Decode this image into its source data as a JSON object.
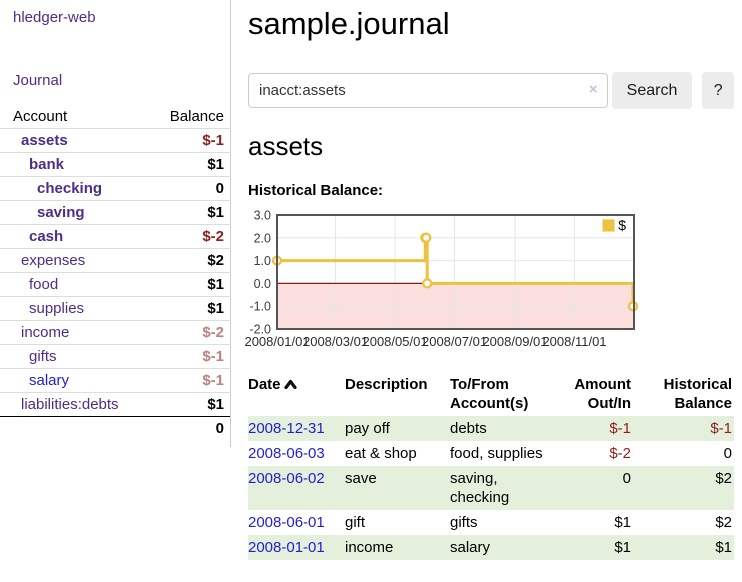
{
  "app": {
    "title": "hledger-web"
  },
  "nav": {
    "journal": "Journal"
  },
  "sidebar": {
    "account_header": "Account",
    "balance_header": "Balance",
    "accounts": [
      {
        "name": "assets",
        "depth": 1,
        "balance": "$-1",
        "matched": true,
        "balance_tone": "negative"
      },
      {
        "name": "bank",
        "depth": 2,
        "balance": "$1",
        "matched": true,
        "balance_tone": "normal"
      },
      {
        "name": "checking",
        "depth": 3,
        "balance": "0",
        "matched": true,
        "balance_tone": "normal"
      },
      {
        "name": "saving",
        "depth": 3,
        "balance": "$1",
        "matched": true,
        "balance_tone": "normal"
      },
      {
        "name": "cash",
        "depth": 2,
        "balance": "$-2",
        "matched": true,
        "balance_tone": "negative"
      },
      {
        "name": "expenses",
        "depth": 1,
        "balance": "$2",
        "matched": false,
        "balance_tone": "normal"
      },
      {
        "name": "food",
        "depth": 2,
        "balance": "$1",
        "matched": false,
        "balance_tone": "normal"
      },
      {
        "name": "supplies",
        "depth": 2,
        "balance": "$1",
        "matched": false,
        "balance_tone": "normal"
      },
      {
        "name": "income",
        "depth": 1,
        "balance": "$-2",
        "matched": false,
        "balance_tone": "negative-muted"
      },
      {
        "name": "gifts",
        "depth": 2,
        "balance": "$-1",
        "matched": false,
        "balance_tone": "negative-muted"
      },
      {
        "name": "salary",
        "depth": 2,
        "balance": "$-1",
        "matched": false,
        "balance_tone": "negative-muted",
        "link_tone": "blue"
      },
      {
        "name": "liabilities:debts",
        "depth": 1,
        "balance": "$1",
        "matched": false,
        "balance_tone": "normal"
      }
    ],
    "total": "0"
  },
  "main": {
    "title": "sample.journal",
    "search": {
      "value": "inacct:assets",
      "clear_icon": "×",
      "search_button": "Search",
      "help_button": "?"
    },
    "account_heading": "assets",
    "chart_heading": "Historical Balance:"
  },
  "chart_data": {
    "type": "line",
    "step": true,
    "title": "Historical Balance",
    "series": [
      {
        "name": "$",
        "color": "#edc240",
        "points": [
          {
            "date": "2008-01-01",
            "value": 1
          },
          {
            "date": "2008-06-01",
            "value": 2
          },
          {
            "date": "2008-06-02",
            "value": 2
          },
          {
            "date": "2008-06-03",
            "value": 0
          },
          {
            "date": "2008-12-31",
            "value": -1
          }
        ]
      }
    ],
    "xlim": [
      "2008-01-01",
      "2009-01-01"
    ],
    "ylim": [
      -2,
      3
    ],
    "x_ticks": [
      {
        "date": "2008-01-01",
        "label": "2008/01/01"
      },
      {
        "date": "2008-03-01",
        "label": "2008/03/01"
      },
      {
        "date": "2008-05-01",
        "label": "2008/05/01"
      },
      {
        "date": "2008-07-01",
        "label": "2008/07/01"
      },
      {
        "date": "2008-09-01",
        "label": "2008/09/01"
      },
      {
        "date": "2008-11-01",
        "label": "2008/11/01"
      }
    ],
    "y_ticks": [
      {
        "value": 3,
        "label": "3.0"
      },
      {
        "value": 2,
        "label": "2.0"
      },
      {
        "value": 1,
        "label": "1.0"
      },
      {
        "value": 0,
        "label": "0.0"
      },
      {
        "value": -1,
        "label": "-1.0"
      },
      {
        "value": -2,
        "label": "-2.0"
      }
    ],
    "grid": true,
    "legend": {
      "position": "top-right",
      "label": "$",
      "swatch_color": "#edc240"
    },
    "negative_region_color": "#fbdede",
    "zero_line_color": "#8b1a1a",
    "border_color": "#545454",
    "gridline_color": "#e6e6e6"
  },
  "table": {
    "headers": {
      "date": "Date",
      "sort_icon": "chevron-up",
      "description": "Description",
      "tofrom_lines": [
        "To/From",
        "Account(s)"
      ],
      "amount_lines": [
        "Amount",
        "Out/In"
      ],
      "historical_lines": [
        "Historical",
        "Balance"
      ]
    },
    "rows": [
      {
        "date": "2008-12-31",
        "description": "pay off",
        "accounts_lines": [
          "debts"
        ],
        "amount": "$-1",
        "amount_negative": true,
        "balance": "$-1",
        "balance_negative": true
      },
      {
        "date": "2008-06-03",
        "description": "eat & shop",
        "accounts_lines": [
          "food, supplies"
        ],
        "amount": "$-2",
        "amount_negative": true,
        "balance": "0",
        "balance_negative": false
      },
      {
        "date": "2008-06-02",
        "description": "save",
        "accounts_lines": [
          "saving,",
          "checking"
        ],
        "amount": "0",
        "amount_negative": false,
        "balance": "$2",
        "balance_negative": false
      },
      {
        "date": "2008-06-01",
        "description": "gift",
        "accounts_lines": [
          "gifts"
        ],
        "amount": "$1",
        "amount_negative": false,
        "balance": "$2",
        "balance_negative": false
      },
      {
        "date": "2008-01-01",
        "description": "income",
        "accounts_lines": [
          "salary"
        ],
        "amount": "$1",
        "amount_negative": false,
        "balance": "$1",
        "balance_negative": false
      }
    ]
  },
  "colors": {
    "link_purple": "#4f2d87",
    "link_blue": "#1f1fd1",
    "negative": "#8f1f1f",
    "negative_muted": "#bf8080",
    "row_stripe": "#e4efdc"
  }
}
